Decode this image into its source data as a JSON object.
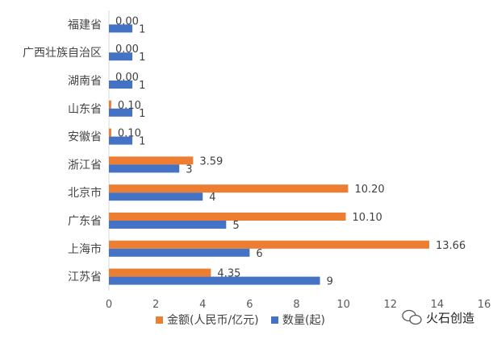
{
  "chart_data": {
    "type": "bar",
    "orientation": "horizontal",
    "categories": [
      "福建省",
      "广西壮族自治区",
      "湖南省",
      "山东省",
      "安徽省",
      "浙江省",
      "北京市",
      "广东省",
      "上海市",
      "江苏省"
    ],
    "series": [
      {
        "name": "金额(人民币/亿元)",
        "color": "#ED7D31",
        "values": [
          0.0,
          0.0,
          0.0,
          0.1,
          0.1,
          3.59,
          10.2,
          10.1,
          13.66,
          4.35
        ],
        "labels": [
          "0.00",
          "0.00",
          "0.00",
          "0.10",
          "0.10",
          "3.59",
          "10.20",
          "10.10",
          "13.66",
          "4.35"
        ]
      },
      {
        "name": "数量(起)",
        "color": "#4472C4",
        "values": [
          1,
          1,
          1,
          1,
          1,
          3,
          4,
          5,
          6,
          9
        ],
        "labels": [
          "1",
          "1",
          "1",
          "1",
          "1",
          "3",
          "4",
          "5",
          "6",
          "9"
        ]
      }
    ],
    "xlim": [
      0,
      16
    ],
    "xticks": [
      "0",
      "2",
      "4",
      "6",
      "8",
      "10",
      "12",
      "14",
      "16"
    ],
    "grid": false,
    "legend_position": "bottom"
  },
  "watermark": {
    "brand": "火石创造",
    "icon": "wechat-icon"
  }
}
